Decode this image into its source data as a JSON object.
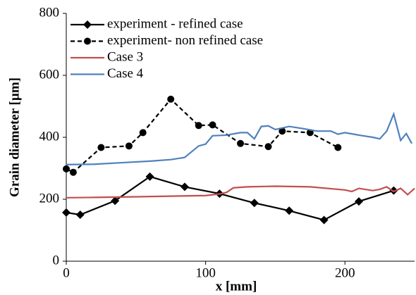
{
  "chart_data": {
    "type": "line",
    "xlabel": "x [mm]",
    "ylabel": "Grain diameter [µm]",
    "xlim": [
      0,
      250
    ],
    "xticks": [
      0,
      100,
      200
    ],
    "ylim": [
      0,
      800
    ],
    "yticks": [
      0,
      200,
      400,
      600,
      800
    ],
    "legend": "top-left",
    "series": [
      {
        "name": "experiment - refined case",
        "color": "#000000",
        "marker": "diamond",
        "dashed": false,
        "x": [
          0,
          10,
          35,
          60,
          85,
          110,
          135,
          160,
          185,
          210,
          235
        ],
        "values": [
          157,
          150,
          195,
          273,
          240,
          218,
          188,
          163,
          133,
          193,
          228
        ]
      },
      {
        "name": "experiment- non refined case",
        "color": "#000000",
        "marker": "circle",
        "dashed": true,
        "x": [
          0,
          5,
          25,
          45,
          55,
          75,
          95,
          105,
          125,
          145,
          155,
          175,
          195
        ],
        "values": [
          298,
          287,
          367,
          372,
          415,
          523,
          438,
          440,
          380,
          370,
          420,
          415,
          367
        ]
      },
      {
        "name": "Case 3",
        "color": "#c0504d",
        "marker": "none",
        "dashed": false,
        "x": [
          0,
          20,
          50,
          100,
          110,
          115,
          120,
          130,
          150,
          175,
          200,
          205,
          210,
          220,
          225,
          230,
          235,
          240,
          245,
          250
        ],
        "values": [
          205,
          206,
          208,
          212,
          217,
          222,
          237,
          240,
          242,
          240,
          230,
          225,
          235,
          228,
          232,
          240,
          225,
          235,
          215,
          235
        ]
      },
      {
        "name": "Case 4",
        "color": "#4f81bd",
        "marker": "none",
        "dashed": false,
        "x": [
          0,
          20,
          40,
          60,
          75,
          85,
          95,
          100,
          105,
          115,
          125,
          130,
          135,
          140,
          145,
          150,
          160,
          170,
          180,
          190,
          195,
          200,
          210,
          220,
          225,
          230,
          235,
          240,
          244,
          248
        ],
        "values": [
          312,
          313,
          318,
          323,
          328,
          335,
          372,
          378,
          405,
          407,
          415,
          415,
          395,
          435,
          437,
          425,
          435,
          428,
          420,
          420,
          410,
          415,
          407,
          400,
          395,
          420,
          475,
          390,
          412,
          380
        ]
      }
    ]
  }
}
